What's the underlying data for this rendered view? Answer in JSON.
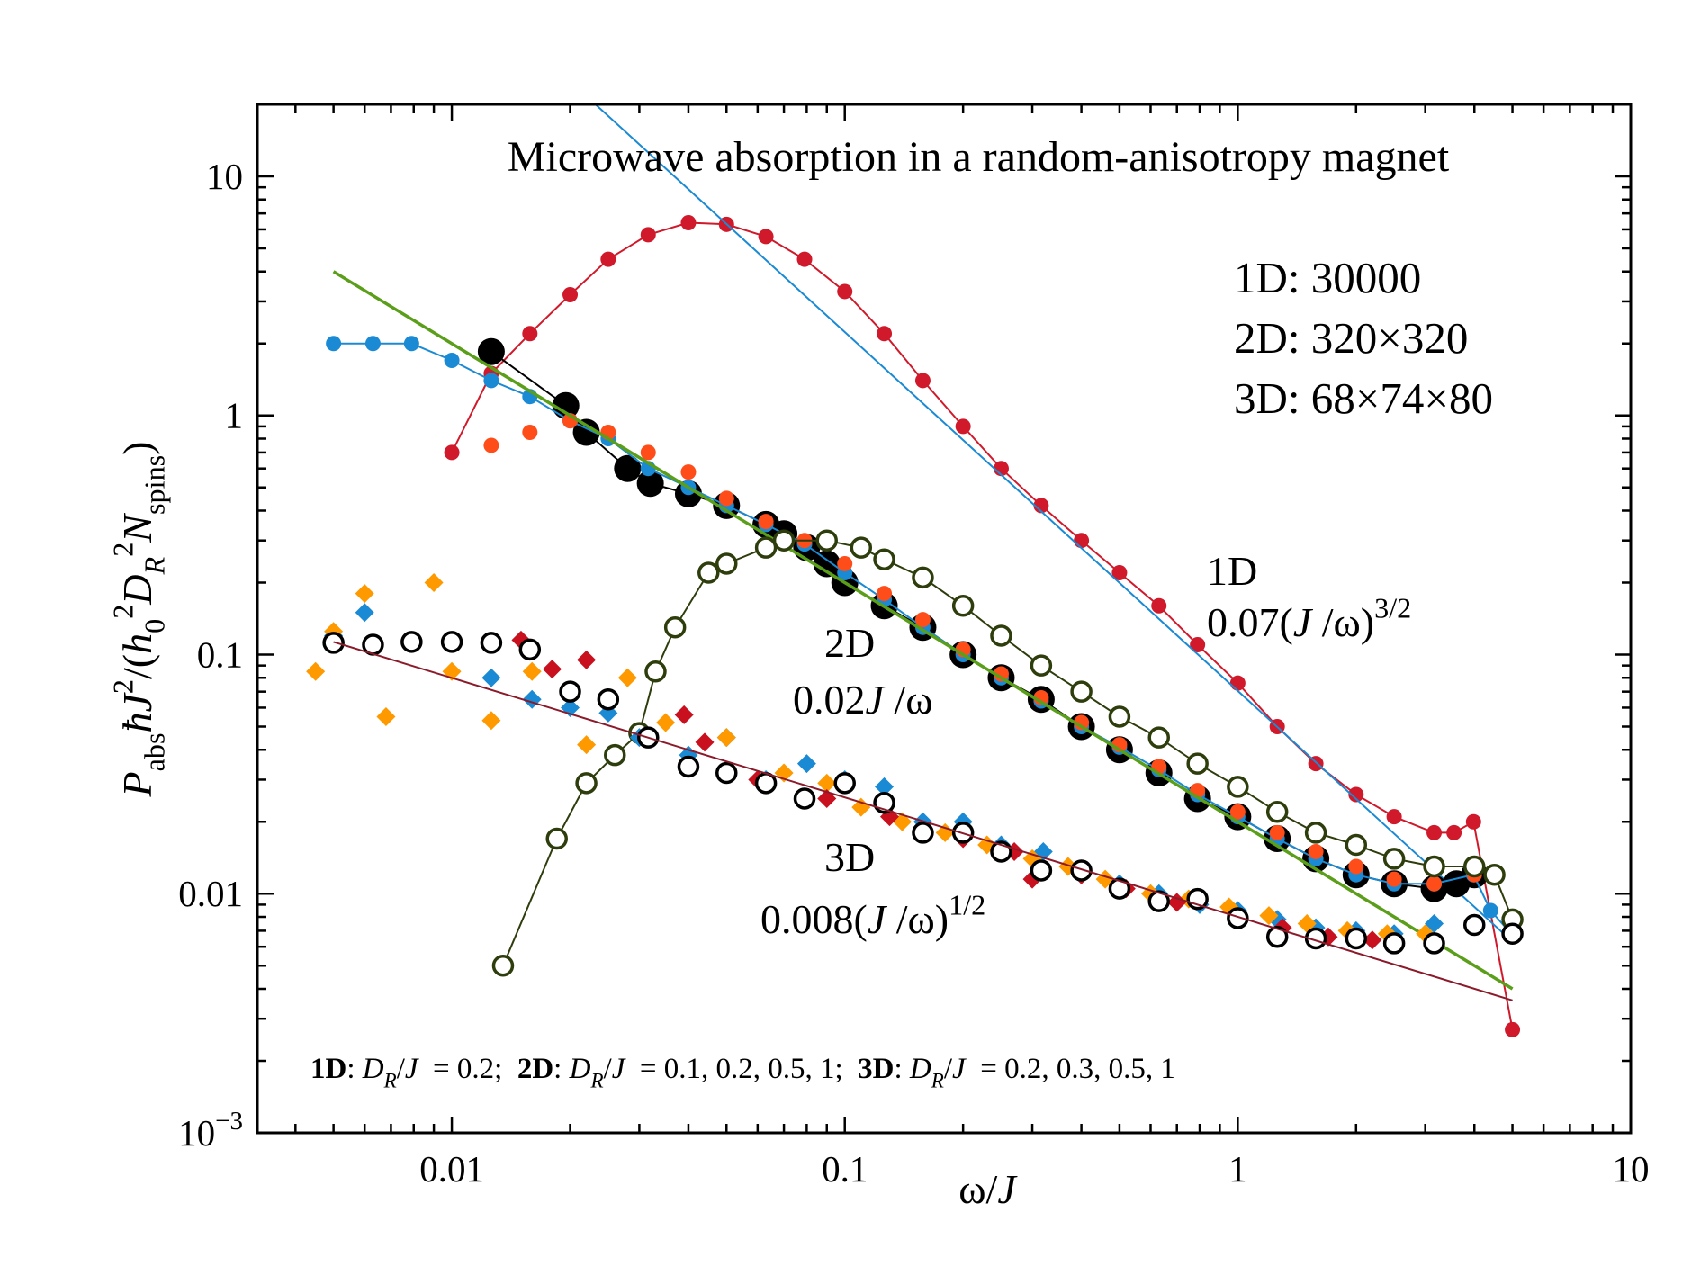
{
  "chart_data": {
    "type": "scatter",
    "title": "Microwave absorption in a random-anisotropy magnet",
    "xscale": "log",
    "yscale": "log",
    "xlim": [
      0.0032,
      10
    ],
    "ylim": [
      0.001,
      20
    ],
    "xticks": [
      0.01,
      0.1,
      1,
      10
    ],
    "yticks": [
      {
        "value": 0.001,
        "label": "10",
        "exponent": "−3"
      },
      0.01,
      0.1,
      1,
      10
    ],
    "xminorticks": [
      0.004,
      0.005,
      0.006,
      0.007,
      0.008,
      0.009,
      0.02,
      0.03,
      0.04,
      0.05,
      0.06,
      0.07,
      0.08,
      0.09,
      0.2,
      0.3,
      0.4,
      0.5,
      0.6,
      0.7,
      0.8,
      0.9,
      2,
      3,
      4,
      5,
      6,
      7,
      8,
      9
    ],
    "yminorticks": [
      0.002,
      0.003,
      0.004,
      0.005,
      0.006,
      0.007,
      0.008,
      0.009,
      0.02,
      0.03,
      0.04,
      0.05,
      0.06,
      0.07,
      0.08,
      0.09,
      0.2,
      0.3,
      0.4,
      0.5,
      0.6,
      0.7,
      0.8,
      0.9,
      2,
      3,
      4,
      5,
      6,
      7,
      8,
      9
    ],
    "xlabel": [
      {
        "text": "ω/"
      },
      {
        "text": "J",
        "style": "i"
      }
    ],
    "ylabel": [
      {
        "text": "P",
        "style": "i"
      },
      {
        "text": "abs",
        "style": "sub"
      },
      {
        "text": "ħJ",
        "style": "i"
      },
      {
        "text": "2",
        "style": "sup"
      },
      {
        "text": "/("
      },
      {
        "text": "h",
        "style": "i"
      },
      {
        "text": "0",
        "style": "sub"
      },
      {
        "text": "2",
        "style": "sup"
      },
      {
        "text": "D",
        "style": "i"
      },
      {
        "text": "R",
        "style": "subi"
      },
      {
        "text": "2",
        "style": "sup"
      },
      {
        "text": "N",
        "style": "i"
      },
      {
        "text": "spins",
        "style": "sub"
      },
      {
        "text": ")"
      }
    ],
    "annotations": [
      [
        {
          "text": "1D: 30000"
        }
      ],
      [
        {
          "text": "2D: 320×320"
        }
      ],
      [
        {
          "text": "3D: 68×74×80"
        }
      ],
      [
        {
          "text": "1D"
        }
      ],
      [
        {
          "text": "0.07("
        },
        {
          "text": "J",
          "style": "i"
        },
        {
          "text": " /ω)"
        },
        {
          "text": "3/2",
          "style": "sup"
        }
      ],
      [
        {
          "text": "2D"
        }
      ],
      [
        {
          "text": "0.02"
        },
        {
          "text": "J",
          "style": "i"
        },
        {
          "text": " /ω"
        }
      ],
      [
        {
          "text": "3D"
        }
      ],
      [
        {
          "text": "0.008("
        },
        {
          "text": "J",
          "style": "i"
        },
        {
          "text": " /ω)"
        },
        {
          "text": "1/2",
          "style": "sup"
        }
      ],
      [
        {
          "text": "1D",
          "style": "b"
        },
        {
          "text": ": "
        },
        {
          "text": "D",
          "style": "i"
        },
        {
          "text": "R",
          "style": "subi"
        },
        {
          "text": "/"
        },
        {
          "text": "J",
          "style": "i"
        },
        {
          "text": "  = 0.2;  "
        },
        {
          "text": "2D",
          "style": "b"
        },
        {
          "text": ": "
        },
        {
          "text": "D",
          "style": "i"
        },
        {
          "text": "R",
          "style": "subi"
        },
        {
          "text": "/"
        },
        {
          "text": "J",
          "style": "i"
        },
        {
          "text": "  = 0.1, 0.2, 0.5, 1;  "
        },
        {
          "text": "3D",
          "style": "b"
        },
        {
          "text": ": "
        },
        {
          "text": "D",
          "style": "i"
        },
        {
          "text": "R",
          "style": "subi"
        },
        {
          "text": "/"
        },
        {
          "text": "J",
          "style": "i"
        },
        {
          "text": "  = 0.2, 0.3, 0.5, 1"
        }
      ]
    ],
    "series": [
      {
        "color": "#d0192a",
        "marker": "circle",
        "line": true,
        "x": [
          0.01,
          0.0126,
          0.0158,
          0.02,
          0.025,
          0.0316,
          0.04,
          0.05,
          0.063,
          0.079,
          0.1,
          0.126,
          0.158,
          0.2,
          0.25,
          0.316,
          0.4,
          0.5,
          0.63,
          0.79,
          1.0,
          1.26,
          1.58,
          2.0,
          2.5,
          3.16,
          3.55,
          3.98,
          5.0
        ],
        "values": [
          0.7,
          1.5,
          2.2,
          3.2,
          4.5,
          5.7,
          6.4,
          6.3,
          5.6,
          4.5,
          3.3,
          2.2,
          1.4,
          0.9,
          0.6,
          0.42,
          0.3,
          0.22,
          0.16,
          0.11,
          0.076,
          0.05,
          0.035,
          0.026,
          0.021,
          0.018,
          0.018,
          0.02,
          0.0027
        ]
      },
      {
        "color": "#1a8ad4",
        "marker": "none",
        "line": true,
        "x": [
          0.0232,
          5
        ],
        "values": [
          20,
          0.0063
        ]
      },
      {
        "color": "#000000",
        "marker": "bigcircle",
        "line": true,
        "x": [
          0.0126,
          0.0195,
          0.022,
          0.028,
          0.032,
          0.04,
          0.05,
          0.063,
          0.07,
          0.08,
          0.09,
          0.1,
          0.126,
          0.158,
          0.2,
          0.25,
          0.316,
          0.4,
          0.5,
          0.63,
          0.79,
          1.0,
          1.26,
          1.58,
          2.0,
          2.5,
          3.16,
          3.6,
          4.0
        ],
        "values": [
          1.85,
          1.1,
          0.85,
          0.6,
          0.52,
          0.47,
          0.42,
          0.35,
          0.32,
          0.28,
          0.24,
          0.2,
          0.16,
          0.13,
          0.1,
          0.08,
          0.065,
          0.05,
          0.04,
          0.032,
          0.025,
          0.021,
          0.017,
          0.014,
          0.012,
          0.011,
          0.0105,
          0.011,
          0.012
        ]
      },
      {
        "color": "#1a8ad4",
        "marker": "circle",
        "line": true,
        "x": [
          0.005,
          0.0063,
          0.0079,
          0.01,
          0.0126,
          0.0158,
          0.02,
          0.025,
          0.0316,
          0.04,
          0.05,
          0.063,
          0.079,
          0.1,
          0.126,
          0.158,
          0.2,
          0.25,
          0.316,
          0.4,
          0.5,
          0.63,
          0.79,
          1.0,
          1.26,
          1.58,
          2.0,
          2.5,
          3.16,
          3.98,
          4.4,
          5.0
        ],
        "values": [
          2.0,
          2.0,
          2.0,
          1.7,
          1.4,
          1.2,
          0.95,
          0.8,
          0.6,
          0.5,
          0.42,
          0.35,
          0.29,
          0.22,
          0.17,
          0.13,
          0.1,
          0.08,
          0.064,
          0.05,
          0.041,
          0.033,
          0.026,
          0.021,
          0.017,
          0.014,
          0.012,
          0.011,
          0.011,
          0.012,
          0.0085,
          0.0067
        ]
      },
      {
        "color": "#ff4d1a",
        "marker": "circle",
        "line": false,
        "x": [
          0.0126,
          0.0158,
          0.02,
          0.025,
          0.0316,
          0.04,
          0.05,
          0.063,
          0.079,
          0.1,
          0.126,
          0.158,
          0.2,
          0.25,
          0.316,
          0.4,
          0.5,
          0.63,
          0.79,
          1.0,
          1.26,
          1.58,
          2.0,
          2.5,
          3.16,
          4.0
        ],
        "values": [
          0.75,
          0.85,
          0.95,
          0.85,
          0.7,
          0.58,
          0.45,
          0.36,
          0.3,
          0.24,
          0.18,
          0.14,
          0.105,
          0.083,
          0.066,
          0.052,
          0.042,
          0.034,
          0.027,
          0.022,
          0.018,
          0.015,
          0.013,
          0.0115,
          0.011,
          0.012
        ]
      },
      {
        "color": "#5a9e1a",
        "marker": "none",
        "line": true,
        "x": [
          0.005,
          5
        ],
        "values": [
          4,
          0.004
        ]
      },
      {
        "color": "#2e3d0c",
        "marker": "open",
        "line": true,
        "x": [
          0.0135,
          0.0185,
          0.022,
          0.026,
          0.03,
          0.033,
          0.037,
          0.045,
          0.05,
          0.063,
          0.07,
          0.09,
          0.11,
          0.126,
          0.158,
          0.2,
          0.25,
          0.316,
          0.4,
          0.5,
          0.63,
          0.79,
          1.0,
          1.26,
          1.58,
          2.0,
          2.5,
          3.16,
          4.0,
          4.5,
          5.0
        ],
        "values": [
          0.005,
          0.017,
          0.029,
          0.038,
          0.047,
          0.085,
          0.13,
          0.22,
          0.24,
          0.28,
          0.3,
          0.3,
          0.28,
          0.25,
          0.21,
          0.16,
          0.12,
          0.09,
          0.07,
          0.055,
          0.045,
          0.035,
          0.028,
          0.022,
          0.018,
          0.016,
          0.014,
          0.013,
          0.013,
          0.012,
          0.0078
        ]
      },
      {
        "color": "#1a8ad4",
        "marker": "diamond",
        "line": false,
        "x": [
          0.005,
          0.006,
          0.0126,
          0.016,
          0.02,
          0.025,
          0.03,
          0.04,
          0.05,
          0.063,
          0.08,
          0.1,
          0.126,
          0.158,
          0.2,
          0.25,
          0.32,
          0.4,
          0.5,
          0.63,
          0.8,
          1.0,
          1.26,
          1.58,
          2.0,
          2.5,
          3.16
        ],
        "values": [
          0.12,
          0.15,
          0.08,
          0.065,
          0.06,
          0.057,
          0.045,
          0.038,
          0.045,
          0.03,
          0.035,
          0.03,
          0.028,
          0.02,
          0.02,
          0.016,
          0.015,
          0.012,
          0.011,
          0.01,
          0.009,
          0.0085,
          0.0078,
          0.0072,
          0.007,
          0.0068,
          0.0075
        ]
      },
      {
        "color": "#ff9900",
        "marker": "diamond",
        "line": false,
        "x": [
          0.0045,
          0.005,
          0.006,
          0.0068,
          0.009,
          0.01,
          0.0126,
          0.016,
          0.02,
          0.022,
          0.028,
          0.035,
          0.05,
          0.07,
          0.09,
          0.11,
          0.14,
          0.18,
          0.23,
          0.3,
          0.37,
          0.46,
          0.6,
          0.75,
          0.95,
          1.2,
          1.5,
          1.9,
          2.4,
          3.0
        ],
        "values": [
          0.085,
          0.125,
          0.18,
          0.055,
          0.2,
          0.085,
          0.053,
          0.085,
          0.07,
          0.042,
          0.08,
          0.052,
          0.045,
          0.032,
          0.029,
          0.023,
          0.02,
          0.018,
          0.016,
          0.014,
          0.013,
          0.0115,
          0.01,
          0.0095,
          0.0088,
          0.0081,
          0.0075,
          0.007,
          0.0068,
          0.0068
        ]
      },
      {
        "color": "#c8101e",
        "marker": "diamond",
        "line": false,
        "x": [
          0.015,
          0.018,
          0.022,
          0.039,
          0.044,
          0.06,
          0.09,
          0.13,
          0.2,
          0.27,
          0.3,
          0.4,
          0.52,
          0.7,
          1.0,
          1.3,
          1.7,
          2.2
        ],
        "values": [
          0.115,
          0.087,
          0.095,
          0.056,
          0.043,
          0.03,
          0.025,
          0.021,
          0.017,
          0.015,
          0.0115,
          0.012,
          0.0105,
          0.0092,
          0.008,
          0.0072,
          0.0066,
          0.0064
        ]
      },
      {
        "color": "#000000",
        "marker": "open",
        "line": false,
        "x": [
          0.005,
          0.0063,
          0.0079,
          0.01,
          0.0126,
          0.0158,
          0.02,
          0.025,
          0.0316,
          0.04,
          0.05,
          0.063,
          0.079,
          0.1,
          0.126,
          0.158,
          0.2,
          0.25,
          0.316,
          0.4,
          0.5,
          0.63,
          0.79,
          1.0,
          1.26,
          1.58,
          2.0,
          2.5,
          3.16,
          4.0,
          5.0
        ],
        "values": [
          0.112,
          0.11,
          0.113,
          0.113,
          0.112,
          0.105,
          0.07,
          0.065,
          0.045,
          0.034,
          0.032,
          0.029,
          0.025,
          0.029,
          0.024,
          0.018,
          0.018,
          0.015,
          0.0125,
          0.0125,
          0.0105,
          0.0093,
          0.0095,
          0.0079,
          0.0066,
          0.0065,
          0.0065,
          0.0062,
          0.0062,
          0.0074,
          0.0068
        ]
      },
      {
        "color": "#8b1a2a",
        "marker": "none",
        "line": true,
        "x": [
          0.005,
          5
        ],
        "values": [
          0.113,
          0.00358
        ]
      }
    ]
  }
}
